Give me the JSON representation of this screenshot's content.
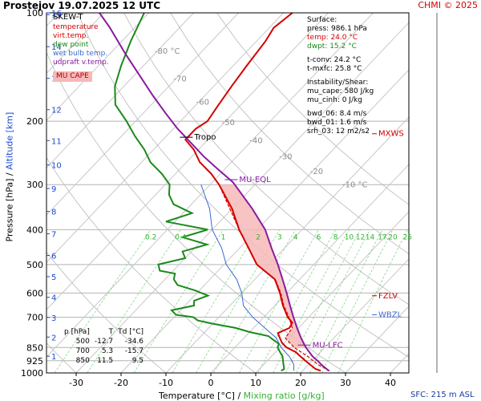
{
  "header": {
    "title": "Prostejov    19.07.2025 12 UTC",
    "credit": "CHMI © 2025"
  },
  "legend": {
    "title": "SKEW-T",
    "items": [
      {
        "label": "temperature",
        "color": "#d40000"
      },
      {
        "label": "virt.temp.",
        "color": "#d40000"
      },
      {
        "label": "dew point",
        "color": "#1a8a1a"
      },
      {
        "label": "wet bulb temp.",
        "color": "#3a6ad0"
      },
      {
        "label": "udpraft v.temp.",
        "color": "#8a1aa0"
      }
    ],
    "mucape_box": "MU CAPE"
  },
  "surface": {
    "title": "Surface:",
    "press": "press: 986.1 hPa",
    "temp": "temp: 24.0 °C",
    "dwpt": "dwpt: 15.2 °C",
    "tconv": "t-conv: 24.2 °C",
    "tmxfc": "t-mxfc: 25.8 °C",
    "instab_title": "Instability/Shear:",
    "mu_cape": "mu_cape: 580 J/kg",
    "mu_cinh": "mu_cinh: 0 J/kg",
    "bwd_06": "bwd_06: 8.4 m/s",
    "bwd_01": "bwd_01: 1.6 m/s",
    "srh_03": "srh_03: 12 m2/s2"
  },
  "levels_table": {
    "headers": [
      "p [hPa]",
      "T",
      "Td [°C]"
    ],
    "rows": [
      [
        "500",
        "-12.7",
        "-34.6"
      ],
      [
        "700",
        "5.3",
        "-15.7"
      ],
      [
        "850",
        "11.5",
        "9.5"
      ]
    ]
  },
  "axes": {
    "x_title_temp": "Temperature [°C]",
    "x_title_sep": "/",
    "x_title_mix": "Mixing ratio [g/kg]",
    "y_title_p": "Pressure [hPa]",
    "y_title_sep": "/",
    "y_title_alt": "Altitude [km]",
    "sfc_label": "SFC: 215 m ASL"
  },
  "chart_data": {
    "type": "line",
    "title": "Prostejov 19.07.2025 12 UTC",
    "xlabel": "Temperature [°C] / Mixing ratio [g/kg]",
    "ylabel": "Pressure [hPa] / Altitude [km]",
    "xlim": [
      -35,
      45
    ],
    "ylim_pressure": [
      1000,
      100
    ],
    "y_scale": "log",
    "x_ticks": [
      -30,
      -20,
      -10,
      0,
      10,
      20,
      30,
      40
    ],
    "pressure_ticks": [
      100,
      200,
      300,
      400,
      500,
      600,
      700,
      850,
      925,
      1000
    ],
    "altitude_ticks_km": [
      1,
      2,
      3,
      4,
      5,
      6,
      7,
      8,
      9,
      10,
      11,
      12,
      13,
      14,
      15,
      16
    ],
    "isotherm_labels": [
      "-80 °C",
      "-70",
      "-60",
      "-50",
      "-40",
      "-30",
      "-20",
      "-10 °C"
    ],
    "isotherm_values": [
      -80,
      -70,
      -60,
      -50,
      -40,
      -30,
      -20,
      -10
    ],
    "mixing_ratio_labels": [
      "0.2",
      "0.4",
      "1",
      "2",
      "3",
      "4",
      "6",
      "8",
      "10",
      "12",
      "14",
      "17",
      "20",
      "25"
    ],
    "mixing_ratio_values": [
      0.2,
      0.4,
      1,
      2,
      3,
      4,
      6,
      8,
      10,
      12,
      14,
      17,
      20,
      25
    ],
    "annotations": [
      {
        "text": "Tropo",
        "p": 225,
        "color": "#000000"
      },
      {
        "text": "MU-EQL",
        "p": 295,
        "color": "#8a1aa0"
      },
      {
        "text": "MXWS",
        "p": 220,
        "color": "#d40000"
      },
      {
        "text": "FZLV",
        "p": 620,
        "color": "#d40000"
      },
      {
        "text": "WBZL",
        "p": 700,
        "color": "#3a6ad0"
      },
      {
        "text": "MU-LFC",
        "p": 850,
        "color": "#8a1aa0"
      }
    ],
    "series": [
      {
        "name": "temperature",
        "color": "#d40000",
        "points": [
          [
            986,
            24.0
          ],
          [
            975,
            22.5
          ],
          [
            950,
            20.5
          ],
          [
            925,
            18.5
          ],
          [
            900,
            16.5
          ],
          [
            875,
            14.5
          ],
          [
            850,
            11.5
          ],
          [
            825,
            9.5
          ],
          [
            800,
            8.0
          ],
          [
            775,
            6.5
          ],
          [
            750,
            8.0
          ],
          [
            725,
            7.5
          ],
          [
            700,
            5.3
          ],
          [
            675,
            3.6
          ],
          [
            650,
            1.8
          ],
          [
            600,
            -1.5
          ],
          [
            550,
            -5.5
          ],
          [
            500,
            -12.7
          ],
          [
            450,
            -18
          ],
          [
            400,
            -24
          ],
          [
            350,
            -30
          ],
          [
            300,
            -38
          ],
          [
            280,
            -42
          ],
          [
            260,
            -47
          ],
          [
            240,
            -51
          ],
          [
            225,
            -55
          ],
          [
            210,
            -55
          ],
          [
            200,
            -54
          ],
          [
            180,
            -55
          ],
          [
            160,
            -56
          ],
          [
            140,
            -57
          ],
          [
            120,
            -58
          ],
          [
            110,
            -59
          ],
          [
            100,
            -58
          ]
        ]
      },
      {
        "name": "virt.temp.",
        "color": "#d40000",
        "points": [
          [
            986,
            26.0
          ],
          [
            950,
            22.3
          ],
          [
            925,
            20.2
          ],
          [
            900,
            18.1
          ],
          [
            850,
            13.2
          ],
          [
            800,
            9.2
          ],
          [
            750,
            8.6
          ],
          [
            700,
            5.6
          ],
          [
            650,
            2.0
          ],
          [
            600,
            -1.3
          ],
          [
            550,
            -5.4
          ],
          [
            500,
            -12.6
          ],
          [
            400,
            -24
          ],
          [
            300,
            -38
          ]
        ]
      },
      {
        "name": "dew point",
        "color": "#1a8a1a",
        "points": [
          [
            986,
            15.2
          ],
          [
            975,
            15.5
          ],
          [
            950,
            14.5
          ],
          [
            925,
            13.5
          ],
          [
            900,
            12.5
          ],
          [
            875,
            11.0
          ],
          [
            850,
            9.5
          ],
          [
            830,
            9.0
          ],
          [
            810,
            7.0
          ],
          [
            790,
            5.0
          ],
          [
            770,
            0.0
          ],
          [
            750,
            -4.0
          ],
          [
            730,
            -10.0
          ],
          [
            715,
            -14.0
          ],
          [
            700,
            -15.7
          ],
          [
            690,
            -20.0
          ],
          [
            670,
            -22.0
          ],
          [
            650,
            -18.0
          ],
          [
            630,
            -19.0
          ],
          [
            610,
            -17.0
          ],
          [
            590,
            -21.0
          ],
          [
            570,
            -26.0
          ],
          [
            550,
            -28.0
          ],
          [
            530,
            -29.0
          ],
          [
            520,
            -33.0
          ],
          [
            500,
            -34.6
          ],
          [
            480,
            -30.0
          ],
          [
            460,
            -32.0
          ],
          [
            440,
            -28.0
          ],
          [
            420,
            -35.0
          ],
          [
            400,
            -31.0
          ],
          [
            380,
            -42.0
          ],
          [
            360,
            -38.0
          ],
          [
            340,
            -44.0
          ],
          [
            320,
            -47.0
          ],
          [
            300,
            -49.0
          ],
          [
            280,
            -53.0
          ],
          [
            260,
            -58.0
          ],
          [
            240,
            -62.0
          ],
          [
            220,
            -67.0
          ],
          [
            200,
            -72.0
          ],
          [
            180,
            -78.0
          ],
          [
            160,
            -82.0
          ],
          [
            140,
            -85.0
          ],
          [
            120,
            -88.0
          ],
          [
            100,
            -91.0
          ]
        ]
      },
      {
        "name": "wet bulb temp.",
        "color": "#3a6ad0",
        "points": [
          [
            986,
            18.0
          ],
          [
            950,
            16.8
          ],
          [
            925,
            15.5
          ],
          [
            900,
            14.0
          ],
          [
            850,
            10.3
          ],
          [
            800,
            7.2
          ],
          [
            750,
            2.5
          ],
          [
            700,
            -2.5
          ],
          [
            650,
            -7.0
          ],
          [
            600,
            -10.0
          ],
          [
            550,
            -14.0
          ],
          [
            500,
            -19.5
          ],
          [
            450,
            -24.0
          ],
          [
            400,
            -30.0
          ],
          [
            350,
            -35.0
          ],
          [
            300,
            -42.0
          ]
        ]
      },
      {
        "name": "udpraft v.temp.",
        "color": "#8a1aa0",
        "points": [
          [
            986,
            25.8
          ],
          [
            950,
            23.0
          ],
          [
            925,
            21.2
          ],
          [
            900,
            19.2
          ],
          [
            850,
            15.8
          ],
          [
            800,
            12.7
          ],
          [
            750,
            9.7
          ],
          [
            700,
            6.6
          ],
          [
            650,
            3.4
          ],
          [
            600,
            0.0
          ],
          [
            550,
            -3.8
          ],
          [
            500,
            -8.0
          ],
          [
            450,
            -12.9
          ],
          [
            400,
            -18.2
          ],
          [
            350,
            -25.5
          ],
          [
            300,
            -34.5
          ],
          [
            295,
            -35.5
          ],
          [
            270,
            -42.0
          ],
          [
            250,
            -47.5
          ],
          [
            230,
            -53.0
          ],
          [
            210,
            -59.0
          ],
          [
            190,
            -65.0
          ],
          [
            170,
            -71.5
          ],
          [
            150,
            -78.5
          ],
          [
            130,
            -86.5
          ],
          [
            110,
            -95.5
          ],
          [
            100,
            -101
          ]
        ]
      }
    ],
    "cape_fill": {
      "from_series": "udpraft v.temp.",
      "to_series": "virt.temp.",
      "p_top": 295,
      "p_bottom": 850,
      "color": "#f7b8b8"
    },
    "grid": true,
    "legend_position": "top-left"
  }
}
